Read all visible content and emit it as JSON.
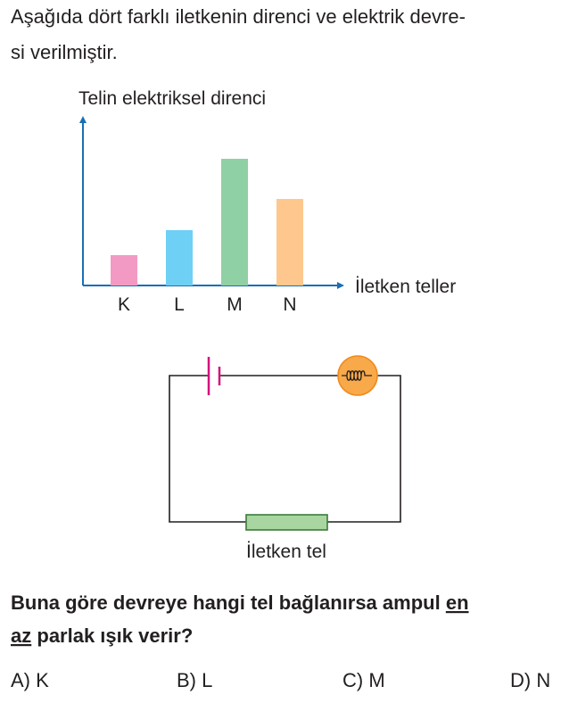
{
  "question": {
    "intro_lines": [
      "Aşağıda dört farklı iletkenin direnci ve elektrik devre-",
      "si verilmiştir."
    ],
    "prompt": {
      "line1": "Buna göre devreye hangi tel bağlanırsa ampul",
      "emphasis1": "en",
      "emphasis2": "az",
      "line2": "parlak ışık verir?"
    }
  },
  "chart_data": {
    "type": "bar",
    "y_label": "Telin elektriksel direnci",
    "x_label": "İletken teller",
    "categories": [
      "K",
      "L",
      "M",
      "N"
    ],
    "values": [
      34,
      62,
      142,
      97
    ],
    "colors": [
      "#f29ac3",
      "#6dd0f4",
      "#8fd0a4",
      "#fdc78e"
    ],
    "ylim": [
      0,
      190
    ],
    "axis_color": "#1a6fb5"
  },
  "circuit": {
    "wire_label": "İletken tel"
  },
  "options": [
    "A) K",
    "B) L",
    "C) M",
    "D) N"
  ]
}
